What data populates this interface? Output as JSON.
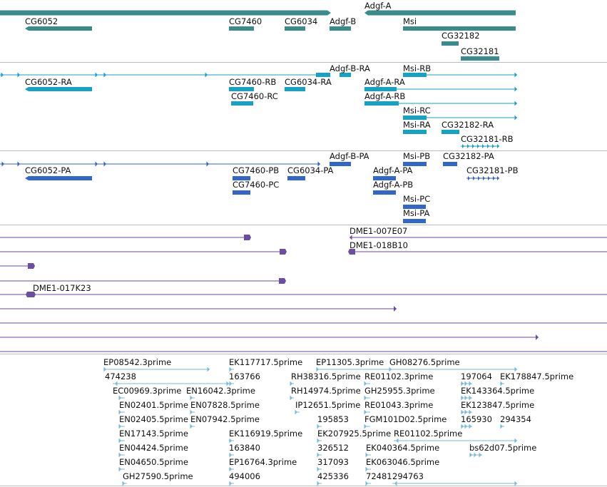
{
  "colors": {
    "gene": "#3a8c8c",
    "transcript": "#18a2c2",
    "protein": "#3366cc",
    "clone": "#6b4ea3",
    "est": "#7bb8de",
    "divider": "#bcbcbc"
  },
  "tracks": {
    "genes": [
      {
        "name": "gene-adgf-a",
        "label": "Adgf-A"
      },
      {
        "name": "gene-cg6052",
        "label": "CG6052"
      },
      {
        "name": "gene-cg7460",
        "label": "CG7460"
      },
      {
        "name": "gene-cg6034",
        "label": "CG6034"
      },
      {
        "name": "gene-adgf-b",
        "label": "Adgf-B"
      },
      {
        "name": "gene-msi",
        "label": "Msi"
      },
      {
        "name": "gene-cg32182",
        "label": "CG32182"
      },
      {
        "name": "gene-cg32181",
        "label": "CG32181"
      }
    ],
    "transcripts": [
      {
        "name": "transcript-adgf-b-ra",
        "label": "Adgf-B-RA"
      },
      {
        "name": "transcript-msi-rb",
        "label": "Msi-RB"
      },
      {
        "name": "transcript-cg6052-ra",
        "label": "CG6052-RA"
      },
      {
        "name": "transcript-cg7460-rb",
        "label": "CG7460-RB"
      },
      {
        "name": "transcript-cg6034-ra",
        "label": "CG6034-RA"
      },
      {
        "name": "transcript-adgf-a-ra",
        "label": "Adgf-A-RA"
      },
      {
        "name": "transcript-cg7460-rc",
        "label": "CG7460-RC"
      },
      {
        "name": "transcript-adgf-a-rb",
        "label": "Adgf-A-RB"
      },
      {
        "name": "transcript-msi-rc",
        "label": "Msi-RC"
      },
      {
        "name": "transcript-msi-ra",
        "label": "Msi-RA"
      },
      {
        "name": "transcript-cg32182-ra",
        "label": "CG32182-RA"
      },
      {
        "name": "transcript-cg32181-rb",
        "label": "CG32181-RB"
      }
    ],
    "proteins": [
      {
        "name": "protein-adgf-b-pa",
        "label": "Adgf-B-PA"
      },
      {
        "name": "protein-msi-pb",
        "label": "Msi-PB"
      },
      {
        "name": "protein-cg32182-pa",
        "label": "CG32182-PA"
      },
      {
        "name": "protein-cg6052-pa",
        "label": "CG6052-PA"
      },
      {
        "name": "protein-cg7460-pb",
        "label": "CG7460-PB"
      },
      {
        "name": "protein-cg6034-pa",
        "label": "CG6034-PA"
      },
      {
        "name": "protein-adgf-a-pa",
        "label": "Adgf-A-PA"
      },
      {
        "name": "protein-cg32181-pb",
        "label": "CG32181-PB"
      },
      {
        "name": "protein-cg7460-pc",
        "label": "CG7460-PC"
      },
      {
        "name": "protein-adgf-a-pb",
        "label": "Adgf-A-PB"
      },
      {
        "name": "protein-msi-pc",
        "label": "Msi-PC"
      },
      {
        "name": "protein-msi-pa",
        "label": "Msi-PA"
      }
    ],
    "clones": [
      {
        "name": "clone-dme1-007e07",
        "label": "DME1-007E07"
      },
      {
        "name": "clone-dme1-018b10",
        "label": "DME1-018B10"
      },
      {
        "name": "clone-dme1-017k23",
        "label": "DME1-017K23"
      }
    ],
    "ests": [
      {
        "name": "est-ep08542",
        "label": "EP08542.3prime"
      },
      {
        "name": "est-ek117717",
        "label": "EK117717.5prime"
      },
      {
        "name": "est-ep11305",
        "label": "EP11305.3prime"
      },
      {
        "name": "est-gh08276",
        "label": "GH08276.5prime"
      },
      {
        "name": "est-474238",
        "label": "474238"
      },
      {
        "name": "est-163766",
        "label": "163766"
      },
      {
        "name": "est-rh38316",
        "label": "RH38316.5prime"
      },
      {
        "name": "est-re01102-3",
        "label": "RE01102.3prime"
      },
      {
        "name": "est-197064",
        "label": "197064"
      },
      {
        "name": "est-ek178847",
        "label": "EK178847.5prime"
      },
      {
        "name": "est-ec00969",
        "label": "EC00969.3prime"
      },
      {
        "name": "est-en16042",
        "label": "EN16042.3prime"
      },
      {
        "name": "est-rh14974",
        "label": "RH14974.5prime"
      },
      {
        "name": "est-gh25955",
        "label": "GH25955.3prime"
      },
      {
        "name": "est-ek143364",
        "label": "EK143364.5prime"
      },
      {
        "name": "est-en02401",
        "label": "EN02401.5prime"
      },
      {
        "name": "est-en07828",
        "label": "EN07828.5prime"
      },
      {
        "name": "est-ip12651",
        "label": "IP12651.5prime"
      },
      {
        "name": "est-re01043",
        "label": "RE01043.3prime"
      },
      {
        "name": "est-ek123847",
        "label": "EK123847.5prime"
      },
      {
        "name": "est-en02405",
        "label": "EN02405.5prime"
      },
      {
        "name": "est-en07942",
        "label": "EN07942.5prime"
      },
      {
        "name": "est-195853",
        "label": "195853"
      },
      {
        "name": "est-fgm101d02",
        "label": "FGM101D02.5prime"
      },
      {
        "name": "est-165930",
        "label": "165930"
      },
      {
        "name": "est-294354",
        "label": "294354"
      },
      {
        "name": "est-en17143",
        "label": "EN17143.5prime"
      },
      {
        "name": "est-ek116919",
        "label": "EK116919.5prime"
      },
      {
        "name": "est-ek207925",
        "label": "EK207925.5prime"
      },
      {
        "name": "est-re01102-5",
        "label": "RE01102.5prime"
      },
      {
        "name": "est-en04424",
        "label": "EN04424.5prime"
      },
      {
        "name": "est-163840",
        "label": "163840"
      },
      {
        "name": "est-326512",
        "label": "326512"
      },
      {
        "name": "est-ek040364",
        "label": "EK040364.5prime"
      },
      {
        "name": "est-bs62d07",
        "label": "bs62d07.5prime"
      },
      {
        "name": "est-en04650",
        "label": "EN04650.5prime"
      },
      {
        "name": "est-ep16764",
        "label": "EP16764.3prime"
      },
      {
        "name": "est-317093",
        "label": "317093"
      },
      {
        "name": "est-ek063046",
        "label": "EK063046.5prime"
      },
      {
        "name": "est-gh27590",
        "label": "GH27590.5prime"
      },
      {
        "name": "est-494006",
        "label": "494006"
      },
      {
        "name": "est-425336",
        "label": "425336"
      },
      {
        "name": "est-72481",
        "label": "72481"
      },
      {
        "name": "est-294763",
        "label": "294763"
      }
    ]
  }
}
